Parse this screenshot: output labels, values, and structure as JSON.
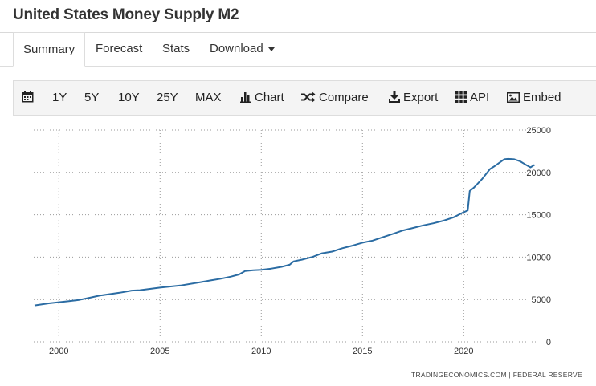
{
  "page": {
    "title": "United States Money Supply M2"
  },
  "tabs": [
    {
      "label": "Summary",
      "active": true
    },
    {
      "label": "Forecast"
    },
    {
      "label": "Stats"
    },
    {
      "label": "Download"
    }
  ],
  "toolbar": {
    "range_buttons": [
      "1Y",
      "5Y",
      "10Y",
      "25Y",
      "MAX"
    ],
    "chart_label": "Chart",
    "compare_label": "Compare",
    "export_label": "Export",
    "api_label": "API",
    "embed_label": "Embed"
  },
  "chart_data": {
    "type": "line",
    "title": "",
    "xlabel": "",
    "ylabel": "",
    "x_ticks": [
      "2000",
      "2005",
      "2010",
      "2015",
      "2020"
    ],
    "y_ticks": [
      0,
      5000,
      10000,
      15000,
      20000,
      25000
    ],
    "xlim": [
      1998.6,
      2023.6
    ],
    "ylim": [
      0,
      25000
    ],
    "grid": true,
    "axis_position": "right",
    "color": "#2b6ca3",
    "series": [
      {
        "x": [
          1998.8,
          1999.5,
          2000.5,
          2001.0,
          2001.5,
          2002.0,
          2003.0,
          2003.6,
          2004.0,
          2004.5,
          2005.0,
          2006.0,
          2007.0,
          2007.5,
          2008.0,
          2008.5,
          2008.9,
          2009.2,
          2009.6,
          2010.0,
          2010.5,
          2011.0,
          2011.4,
          2011.6,
          2012.0,
          2012.5,
          2013.0,
          2013.5,
          2014.0,
          2014.5,
          2015.0,
          2015.5,
          2016.0,
          2016.5,
          2017.0,
          2017.5,
          2018.0,
          2018.5,
          2019.0,
          2019.5,
          2020.0,
          2020.2,
          2020.3,
          2020.5,
          2020.9,
          2021.3,
          2021.5,
          2022.0,
          2022.2,
          2022.5,
          2022.8,
          2023.0,
          2023.3,
          2023.5
        ],
        "values": [
          4300,
          4550,
          4800,
          4950,
          5200,
          5450,
          5800,
          6050,
          6100,
          6250,
          6400,
          6650,
          7050,
          7250,
          7450,
          7700,
          7950,
          8350,
          8450,
          8500,
          8650,
          8850,
          9100,
          9500,
          9700,
          10000,
          10450,
          10650,
          11050,
          11350,
          11700,
          11950,
          12350,
          12750,
          13150,
          13450,
          13750,
          14000,
          14300,
          14700,
          15300,
          15500,
          17800,
          18200,
          19200,
          20400,
          20700,
          21550,
          21600,
          21550,
          21300,
          21000,
          20600,
          20900
        ]
      }
    ]
  },
  "footer": {
    "source": "TRADINGECONOMICS.COM  |  FEDERAL RESERVE"
  }
}
